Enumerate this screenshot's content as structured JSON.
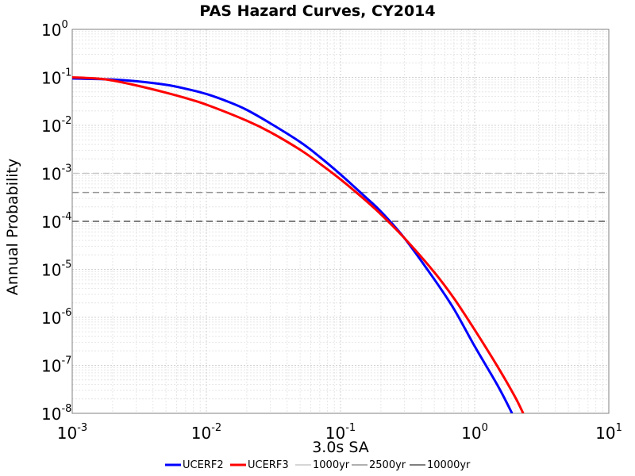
{
  "chart_data": {
    "type": "line",
    "title": "PAS Hazard Curves, CY2014",
    "xlabel": "3.0s SA",
    "ylabel": "Annual Probability",
    "xscale": "log",
    "yscale": "log",
    "xlim": [
      0.001,
      10
    ],
    "ylim": [
      1e-08,
      1
    ],
    "grid": true,
    "legend_position": "bottom",
    "x_ticks": [
      {
        "base": "10",
        "exp": "-3",
        "value": 0.001
      },
      {
        "base": "10",
        "exp": "-2",
        "value": 0.01
      },
      {
        "base": "10",
        "exp": "-1",
        "value": 0.1
      },
      {
        "base": "10",
        "exp": "0",
        "value": 1
      },
      {
        "base": "10",
        "exp": "1",
        "value": 10
      }
    ],
    "y_ticks": [
      {
        "base": "10",
        "exp": "0",
        "value": 1
      },
      {
        "base": "10",
        "exp": "-1",
        "value": 0.1
      },
      {
        "base": "10",
        "exp": "-2",
        "value": 0.01
      },
      {
        "base": "10",
        "exp": "-3",
        "value": 0.001
      },
      {
        "base": "10",
        "exp": "-4",
        "value": 0.0001
      },
      {
        "base": "10",
        "exp": "-5",
        "value": 1e-05
      },
      {
        "base": "10",
        "exp": "-6",
        "value": 1e-06
      },
      {
        "base": "10",
        "exp": "-7",
        "value": 1e-07
      },
      {
        "base": "10",
        "exp": "-8",
        "value": 1e-08
      }
    ],
    "series": [
      {
        "name": "UCERF2",
        "color": "#0000ff",
        "style": "solid",
        "x": [
          0.001,
          0.002,
          0.003,
          0.005,
          0.007,
          0.01,
          0.015,
          0.02,
          0.03,
          0.05,
          0.07,
          0.1,
          0.15,
          0.2,
          0.3,
          0.5,
          0.7,
          1.0,
          1.5,
          1.9
        ],
        "y": [
          0.095,
          0.09,
          0.083,
          0.07,
          0.058,
          0.045,
          0.03,
          0.021,
          0.011,
          0.0045,
          0.0022,
          0.00095,
          0.00034,
          0.00016,
          4.45e-05,
          6.2e-06,
          1.5e-06,
          2.5e-07,
          3.6e-08,
          1e-08
        ]
      },
      {
        "name": "UCERF3",
        "color": "#ff0000",
        "style": "solid",
        "x": [
          0.001,
          0.0015,
          0.002,
          0.003,
          0.005,
          0.007,
          0.01,
          0.02,
          0.03,
          0.05,
          0.07,
          0.1,
          0.15,
          0.2,
          0.3,
          0.5,
          0.7,
          1.0,
          1.5,
          2.0,
          2.3
        ],
        "y": [
          0.1,
          0.095,
          0.086,
          0.068,
          0.048,
          0.037,
          0.027,
          0.0125,
          0.0072,
          0.0031,
          0.0016,
          0.00075,
          0.00029,
          0.00014,
          4.45e-05,
          8.7e-06,
          2.5e-06,
          5.5e-07,
          8.9e-08,
          2.2e-08,
          1e-08
        ]
      }
    ],
    "reference_lines": [
      {
        "name": "1000yr",
        "y": 0.001,
        "color": "#c8c8c8",
        "style": "dashed"
      },
      {
        "name": "2500yr",
        "y": 0.0004,
        "color": "#969696",
        "style": "dashed"
      },
      {
        "name": "10000yr",
        "y": 0.0001,
        "color": "#555555",
        "style": "dashed"
      }
    ]
  }
}
